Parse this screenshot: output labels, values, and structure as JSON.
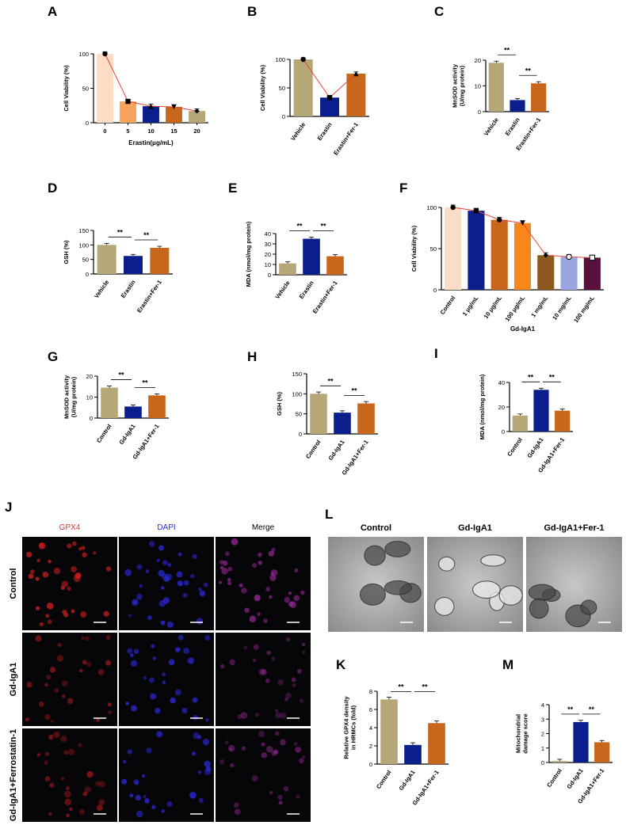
{
  "colors": {
    "vehicle": "#b5a876",
    "erastin": "#0a1e8c",
    "fer": "#c8661c",
    "line": "#e0473a",
    "sig": "#000000"
  },
  "chart_data": [
    {
      "panel": "A",
      "type": "bar",
      "categories": [
        "0",
        "5",
        "10",
        "15",
        "20"
      ],
      "values": [
        100,
        31,
        24,
        23,
        17
      ],
      "bar_colors": [
        "#fbdcc4",
        "#f7a35c",
        "#0a1e8c",
        "#c8661c",
        "#b5a876"
      ],
      "markers": [
        "circle",
        "square",
        "triangle-up",
        "triangle-down",
        "diamond"
      ],
      "line_overlay": true,
      "ylabel": "Cell Viability (%)",
      "xlabel": "Erastin(μg/mL)",
      "ylim": [
        0,
        100
      ],
      "yticks": [
        "0",
        "50",
        "100"
      ],
      "rotate_xticks": false
    },
    {
      "panel": "B",
      "type": "bar",
      "categories": [
        "Vehicle",
        "Erastin",
        "Erastin+Fer-1"
      ],
      "values": [
        100,
        33,
        75
      ],
      "bar_colors": [
        "#b5a876",
        "#0a1e8c",
        "#c8661c"
      ],
      "markers": [
        "circle",
        "square",
        "triangle-up"
      ],
      "line_overlay": true,
      "ylabel": "Cell Viability (%)",
      "xlabel": "",
      "ylim": [
        0,
        100
      ],
      "yticks": [
        "0",
        "50",
        "100"
      ],
      "rotate_xticks": true
    },
    {
      "panel": "C",
      "type": "bar",
      "categories": [
        "Vehicle",
        "Erastin",
        "Erastin+Fer-1"
      ],
      "values": [
        19,
        4.5,
        11
      ],
      "bar_colors": [
        "#b5a876",
        "#0a1e8c",
        "#c8661c"
      ],
      "ylabel": "MnSOD activity\n(U/mg protein)",
      "xlabel": "",
      "ylim": [
        0,
        20
      ],
      "yticks": [
        "0",
        "10",
        "20"
      ],
      "rotate_xticks": true,
      "significance": [
        {
          "from": 0,
          "to": 1,
          "label": "**",
          "level": 0
        },
        {
          "from": 1,
          "to": 2,
          "label": "**",
          "level": 1
        }
      ]
    },
    {
      "panel": "D",
      "type": "bar",
      "categories": [
        "Vehicle",
        "Erastin",
        "Erastin+Fer-1"
      ],
      "values": [
        100,
        62,
        90
      ],
      "bar_colors": [
        "#b5a876",
        "#0a1e8c",
        "#c8661c"
      ],
      "ylabel": "GSH (%)",
      "xlabel": "",
      "ylim": [
        0,
        150
      ],
      "yticks": [
        "0",
        "50",
        "100",
        "150"
      ],
      "rotate_xticks": true,
      "significance": [
        {
          "from": 0,
          "to": 1,
          "label": "**",
          "level": 0
        },
        {
          "from": 1,
          "to": 2,
          "label": "**",
          "level": 1
        }
      ]
    },
    {
      "panel": "E",
      "type": "bar",
      "categories": [
        "Vehicle",
        "Erastin",
        "Erastin+Fer-1"
      ],
      "values": [
        11,
        35,
        18
      ],
      "bar_colors": [
        "#b5a876",
        "#0a1e8c",
        "#c8661c"
      ],
      "ylabel": "MDA (nmol/mg protein)",
      "xlabel": "",
      "ylim": [
        0,
        40
      ],
      "yticks": [
        "0",
        "10",
        "20",
        "30",
        "40"
      ],
      "rotate_xticks": true,
      "significance": [
        {
          "from": 0,
          "to": 1,
          "label": "**",
          "level": 0
        },
        {
          "from": 1,
          "to": 2,
          "label": "**",
          "level": 0
        }
      ]
    },
    {
      "panel": "F",
      "type": "bar",
      "categories": [
        "Control",
        "1 μg/mL",
        "10 μg/mL",
        "100 μg/mL",
        "1 mg/mL",
        "10 mg/mL",
        "100 mg/mL"
      ],
      "values": [
        100,
        96,
        85,
        81,
        42,
        40,
        39
      ],
      "bar_colors": [
        "#fbdcc4",
        "#0a1e8c",
        "#c8661c",
        "#f7861c",
        "#8c5a1e",
        "#9aa6e0",
        "#5a0f3c"
      ],
      "markers": [
        "circle",
        "square",
        "circle",
        "triangle-down",
        "diamond",
        "circle-open",
        "square-open"
      ],
      "line_overlay": true,
      "ylabel": "Cell Viability (%)",
      "xlabel": "Gd-IgA1",
      "ylim": [
        0,
        100
      ],
      "yticks": [
        "0",
        "50",
        "100"
      ],
      "rotate_xticks": true
    },
    {
      "panel": "G",
      "type": "bar",
      "categories": [
        "Control",
        "Gd-IgA1",
        "Gd-IgA1+Fer-1"
      ],
      "values": [
        14.5,
        5.5,
        10.8
      ],
      "bar_colors": [
        "#b5a876",
        "#0a1e8c",
        "#c8661c"
      ],
      "ylabel": "MnSOD activity\n(U/mg protein)",
      "xlabel": "",
      "ylim": [
        0,
        20
      ],
      "yticks": [
        "0",
        "10",
        "20"
      ],
      "rotate_xticks": true,
      "significance": [
        {
          "from": 0,
          "to": 1,
          "label": "**",
          "level": 0
        },
        {
          "from": 1,
          "to": 2,
          "label": "**",
          "level": 1
        }
      ]
    },
    {
      "panel": "H",
      "type": "bar",
      "categories": [
        "Control",
        "Gd-IgA1",
        "Gd-IgA1+Fer-1"
      ],
      "values": [
        100,
        53,
        76
      ],
      "bar_colors": [
        "#b5a876",
        "#0a1e8c",
        "#c8661c"
      ],
      "ylabel": "GSH (%)",
      "xlabel": "",
      "ylim": [
        0,
        150
      ],
      "yticks": [
        "0",
        "50",
        "100",
        "150"
      ],
      "rotate_xticks": true,
      "significance": [
        {
          "from": 0,
          "to": 1,
          "label": "**",
          "level": 0
        },
        {
          "from": 1,
          "to": 2,
          "label": "**",
          "level": 1
        }
      ]
    },
    {
      "panel": "I",
      "type": "bar",
      "categories": [
        "Control",
        "Gd-IgA1",
        "Gd-IgA1+Fer-1"
      ],
      "values": [
        13,
        34,
        17
      ],
      "bar_colors": [
        "#b5a876",
        "#0a1e8c",
        "#c8661c"
      ],
      "ylabel": "MDA (nmol/mg protein)",
      "xlabel": "",
      "ylim": [
        0,
        40
      ],
      "yticks": [
        "0",
        "20",
        "40"
      ],
      "rotate_xticks": true,
      "significance": [
        {
          "from": 0,
          "to": 1,
          "label": "**",
          "level": 0
        },
        {
          "from": 1,
          "to": 2,
          "label": "**",
          "level": 0
        }
      ]
    },
    {
      "panel": "K",
      "type": "bar",
      "categories": [
        "Control",
        "Gd-IgA1",
        "Gd-IgA1+Fer-1"
      ],
      "values": [
        7.1,
        2.1,
        4.5
      ],
      "bar_colors": [
        "#b5a876",
        "#0a1e8c",
        "#c8661c"
      ],
      "ylabel": "Relative GPX4 density\nin HRMCs (fold)",
      "xlabel": "",
      "ylim": [
        0,
        8
      ],
      "yticks": [
        "0",
        "2",
        "4",
        "6",
        "8"
      ],
      "rotate_xticks": true,
      "significance": [
        {
          "from": 0,
          "to": 1,
          "label": "**",
          "level": 0
        },
        {
          "from": 1,
          "to": 2,
          "label": "**",
          "level": 0
        }
      ]
    },
    {
      "panel": "M",
      "type": "bar",
      "categories": [
        "Control",
        "Gd-IgA1",
        "Gd-IgA1+Fer-1"
      ],
      "values": [
        0.1,
        2.8,
        1.4
      ],
      "bar_colors": [
        "#b5a876",
        "#0a1e8c",
        "#c8661c"
      ],
      "ylabel": "Mitochondrial\ndamage score",
      "xlabel": "",
      "ylim": [
        0,
        4
      ],
      "yticks": [
        "0",
        "1",
        "2",
        "3",
        "4"
      ],
      "rotate_xticks": true,
      "significance": [
        {
          "from": 0,
          "to": 1,
          "label": "**",
          "level": 0
        },
        {
          "from": 1,
          "to": 2,
          "label": "**",
          "level": 0
        }
      ]
    }
  ],
  "panel_J": {
    "letter": "J",
    "col_headers": [
      "GPX4",
      "DAPI",
      "Merge"
    ],
    "col_colors": [
      "#e8302a",
      "#2a2ae0",
      "#000000"
    ],
    "row_labels": [
      "Control",
      "Gd-IgA1",
      "Gd-IgA1+Ferrostatin-1"
    ]
  },
  "panel_L": {
    "letter": "L",
    "col_headers": [
      "Control",
      "Gd-IgA1",
      "Gd-IgA1+Fer-1"
    ]
  }
}
